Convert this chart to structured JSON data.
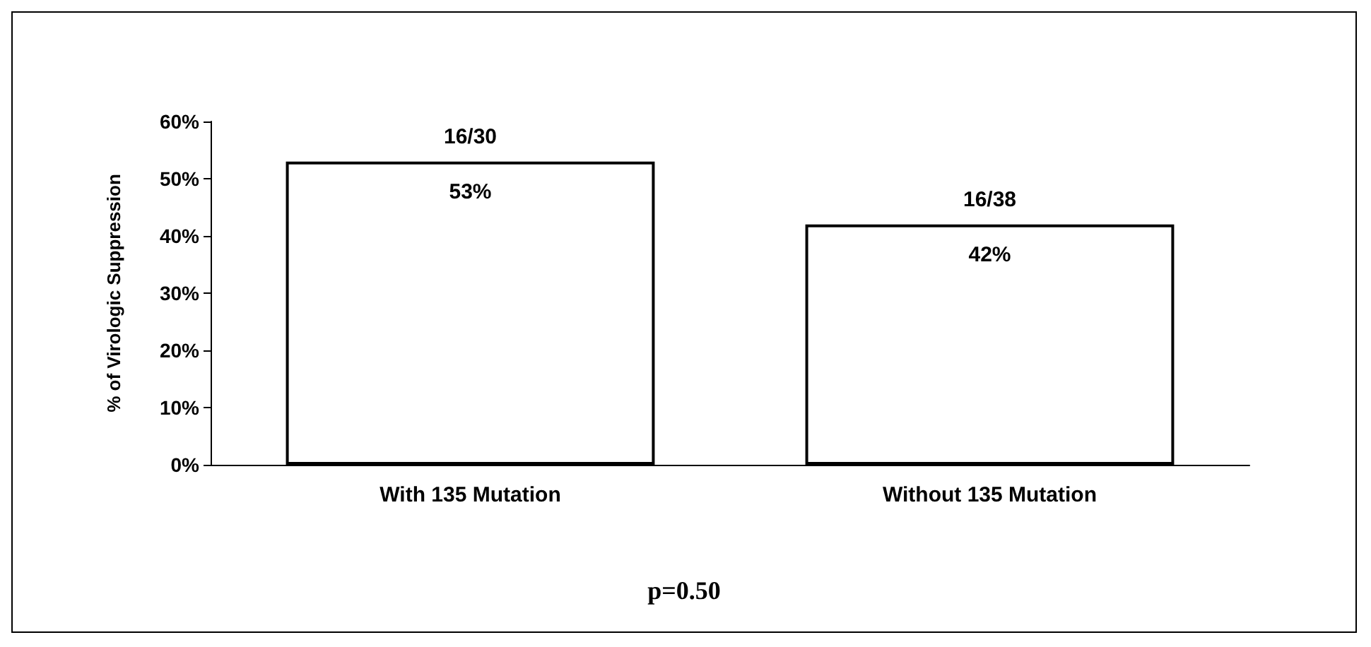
{
  "chart_data": {
    "type": "bar",
    "ylabel": "% of Virologic Suppression",
    "categories": [
      "With 135 Mutation",
      "Without 135 Mutation"
    ],
    "values": [
      53,
      42
    ],
    "color": "#ffffff",
    "value_labels": [
      "53%",
      "42%"
    ],
    "ylim": [
      0,
      60
    ],
    "yticks": [
      {
        "value": 0,
        "label": "0%"
      },
      {
        "value": 10,
        "label": "10%"
      },
      {
        "value": 20,
        "label": "20%"
      },
      {
        "value": 30,
        "label": "30%"
      },
      {
        "value": 40,
        "label": "40%"
      },
      {
        "value": 50,
        "label": "50%"
      },
      {
        "value": 60,
        "label": "60%"
      }
    ],
    "grid": false,
    "annotations": [
      {
        "text": "16/30",
        "x": "With 135 Mutation",
        "y": 53
      },
      {
        "text": "16/38",
        "x": "Without 135 Mutation",
        "y": 42
      },
      "p=0.50"
    ]
  }
}
